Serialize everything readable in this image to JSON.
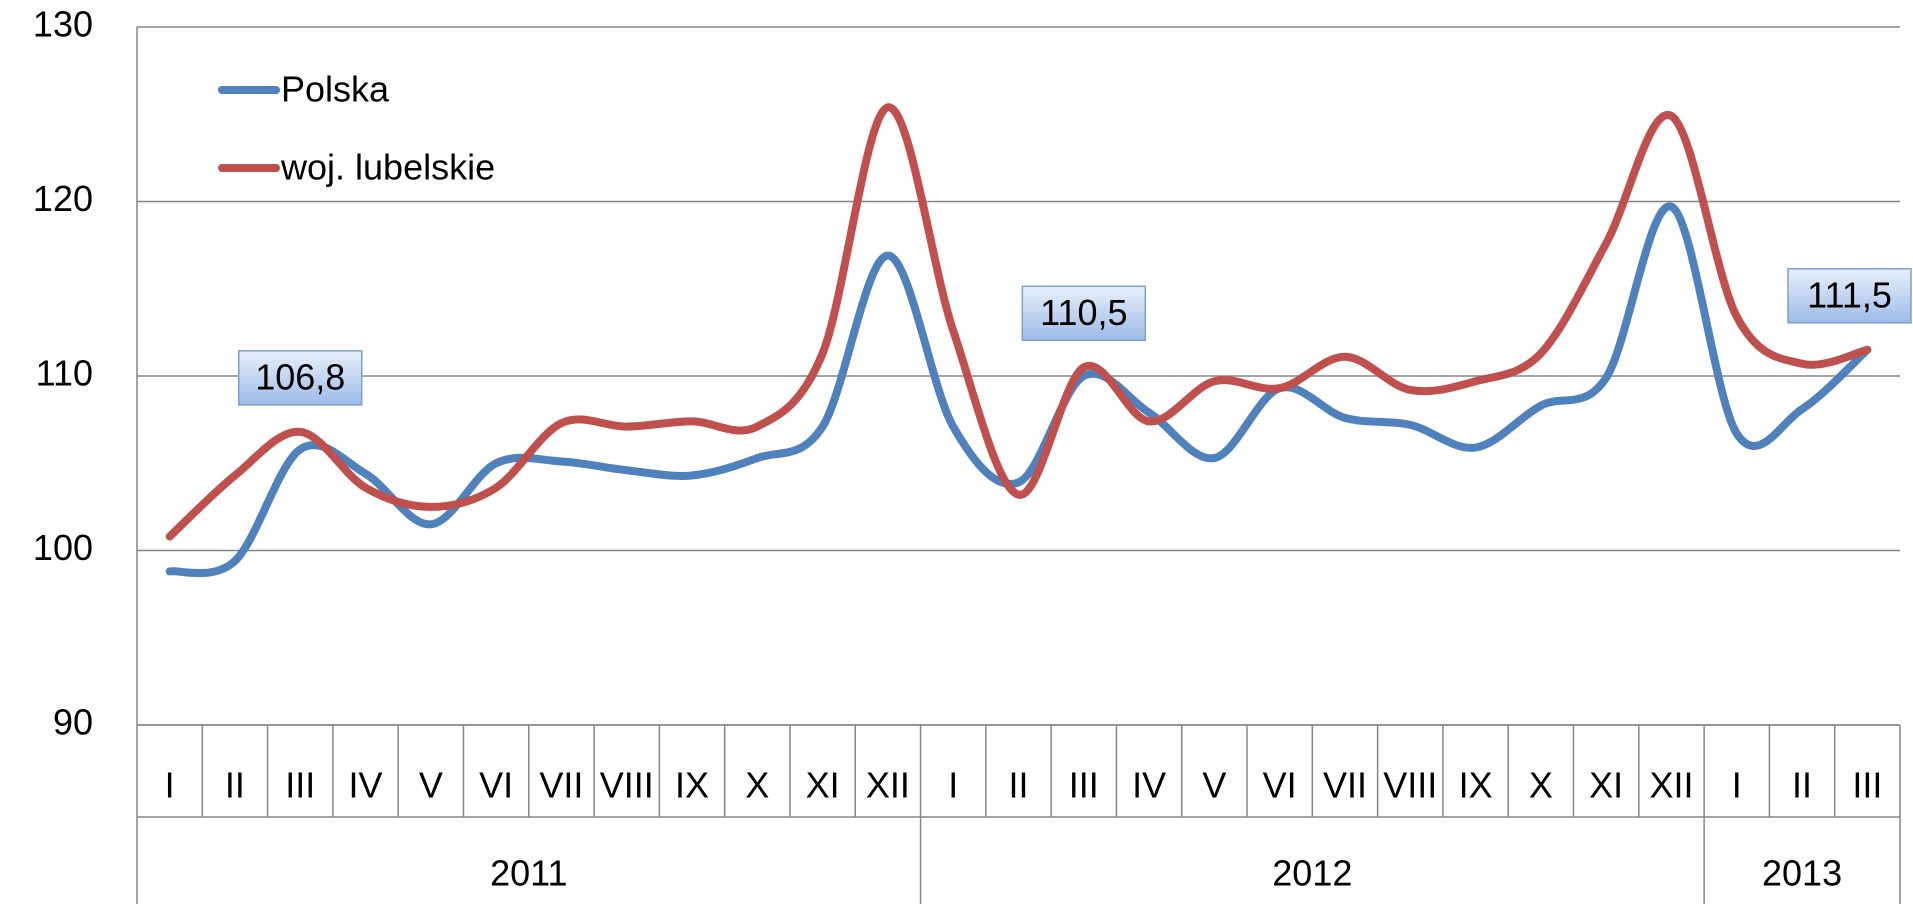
{
  "chart_data": {
    "type": "line",
    "category_groups": [
      {
        "label": "2011",
        "categories": [
          "I",
          "II",
          "III",
          "IV",
          "V",
          "VI",
          "VII",
          "VIII",
          "IX",
          "X",
          "XI",
          "XII"
        ]
      },
      {
        "label": "2012",
        "categories": [
          "I",
          "II",
          "III",
          "IV",
          "V",
          "VI",
          "VII",
          "VIII",
          "IX",
          "X",
          "XI",
          "XII"
        ]
      },
      {
        "label": "2013",
        "categories": [
          "I",
          "II",
          "III"
        ]
      }
    ],
    "series": [
      {
        "name": "Polska",
        "color": "#4f81bd",
        "values": [
          98.8,
          99.4,
          105.8,
          104.4,
          101.5,
          105.0,
          105.1,
          104.6,
          104.3,
          105.3,
          107.1,
          116.9,
          107.1,
          103.9,
          110.0,
          107.9,
          105.3,
          109.3,
          107.6,
          107.2,
          105.9,
          108.3,
          109.9,
          119.7,
          106.7,
          108.1,
          111.5
        ]
      },
      {
        "name": "woj. lubelskie",
        "color": "#c0504d",
        "values": [
          100.8,
          104.3,
          106.8,
          103.6,
          102.5,
          103.6,
          107.3,
          107.1,
          107.4,
          107.1,
          111.3,
          125.4,
          112.6,
          103.2,
          110.5,
          107.4,
          109.7,
          109.3,
          111.1,
          109.2,
          109.7,
          111.3,
          117.6,
          124.9,
          113.4,
          110.7,
          111.5
        ],
        "value_labels": [
          null,
          null,
          "106,8",
          null,
          null,
          null,
          null,
          null,
          null,
          null,
          null,
          null,
          null,
          null,
          "110,5",
          null,
          null,
          null,
          null,
          null,
          null,
          null,
          null,
          null,
          null,
          null,
          "111,5"
        ]
      }
    ],
    "ylim": [
      90,
      130
    ],
    "yticks": [
      90,
      100,
      110,
      120,
      130
    ],
    "grid": true,
    "smooth": true,
    "legend": "top-left"
  }
}
